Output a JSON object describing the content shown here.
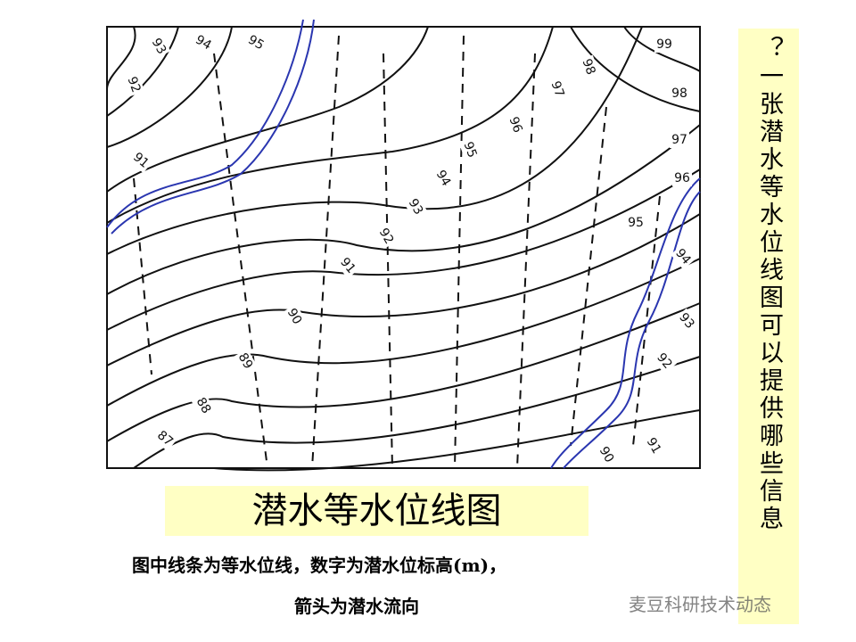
{
  "map": {
    "contour_labels": [
      "93",
      "94",
      "95",
      "92",
      "91",
      "98",
      "97",
      "96",
      "95",
      "94",
      "93",
      "92",
      "91",
      "90",
      "89",
      "88",
      "87",
      "99",
      "98",
      "97",
      "96",
      "95",
      "94",
      "93",
      "92",
      "91",
      "90"
    ]
  },
  "caption": "潜水等水位线图",
  "notes": [
    "图中线条为等水位线，数字为潜水位标高(m)，",
    "箭头为潜水流向"
  ],
  "side_question": "？一张潜水等水位线图可以提供哪些信息",
  "watermark": "麦豆科研技术动态"
}
